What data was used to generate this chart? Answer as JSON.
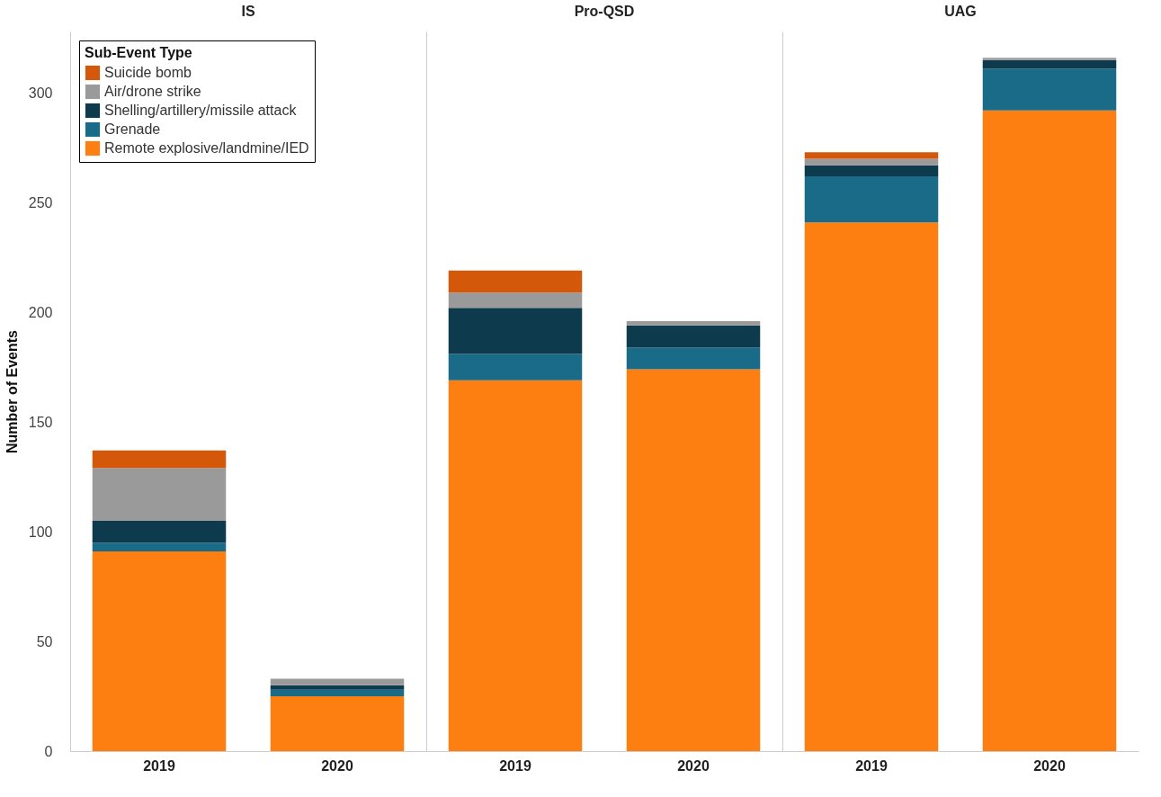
{
  "chart_data": [
    {
      "type": "bar",
      "title": "IS",
      "ylabel": "Number of Events",
      "legend_title": "Sub-Event Type",
      "legend": "top left",
      "stacked": true,
      "categories": [
        "2019",
        "2020"
      ],
      "ylim": [
        0,
        328
      ],
      "yticks": [
        0,
        50,
        100,
        150,
        200,
        250,
        300
      ],
      "grid": false,
      "series": [
        {
          "name": "Remote explosive/landmine/IED",
          "color": "#fd7f12",
          "values": [
            91,
            25
          ]
        },
        {
          "name": "Grenade",
          "color": "#1a6b87",
          "values": [
            4,
            3
          ]
        },
        {
          "name": "Shelling/artillery/missile attack",
          "color": "#0d3a4d",
          "values": [
            10,
            2
          ]
        },
        {
          "name": "Air/drone strike",
          "color": "#9a9a9a",
          "values": [
            24,
            3
          ]
        },
        {
          "name": "Suicide bomb",
          "color": "#d4580a",
          "values": [
            8,
            0
          ]
        }
      ]
    },
    {
      "type": "bar",
      "title": "Pro-QSD",
      "stacked": true,
      "categories": [
        "2019",
        "2020"
      ],
      "ylim": [
        0,
        328
      ],
      "yticks": [
        0,
        50,
        100,
        150,
        200,
        250,
        300
      ],
      "grid": false,
      "tick_labels": "x",
      "legend": false,
      "series": [
        {
          "name": "Remote explosive/landmine/IED",
          "color": "#fd7f12",
          "values": [
            169,
            174
          ]
        },
        {
          "name": "Grenade",
          "color": "#1a6b87",
          "values": [
            12,
            10
          ]
        },
        {
          "name": "Shelling/artillery/missile attack",
          "color": "#0d3a4d",
          "values": [
            21,
            10
          ]
        },
        {
          "name": "Air/drone strike",
          "color": "#9a9a9a",
          "values": [
            7,
            2
          ]
        },
        {
          "name": "Suicide bomb",
          "color": "#d4580a",
          "values": [
            10,
            0
          ]
        }
      ]
    },
    {
      "type": "bar",
      "title": "UAG",
      "stacked": true,
      "categories": [
        "2019",
        "2020"
      ],
      "ylim": [
        0,
        328
      ],
      "yticks": [
        0,
        50,
        100,
        150,
        200,
        250,
        300
      ],
      "grid": false,
      "tick_labels": "x",
      "legend": false,
      "series": [
        {
          "name": "Remote explosive/landmine/IED",
          "color": "#fd7f12",
          "values": [
            241,
            292
          ]
        },
        {
          "name": "Grenade",
          "color": "#1a6b87",
          "values": [
            21,
            19
          ]
        },
        {
          "name": "Shelling/artillery/missile attack",
          "color": "#0d3a4d",
          "values": [
            5,
            4
          ]
        },
        {
          "name": "Air/drone strike",
          "color": "#9a9a9a",
          "values": [
            3,
            1
          ]
        },
        {
          "name": "Suicide bomb",
          "color": "#d4580a",
          "values": [
            3,
            0
          ]
        }
      ]
    }
  ]
}
